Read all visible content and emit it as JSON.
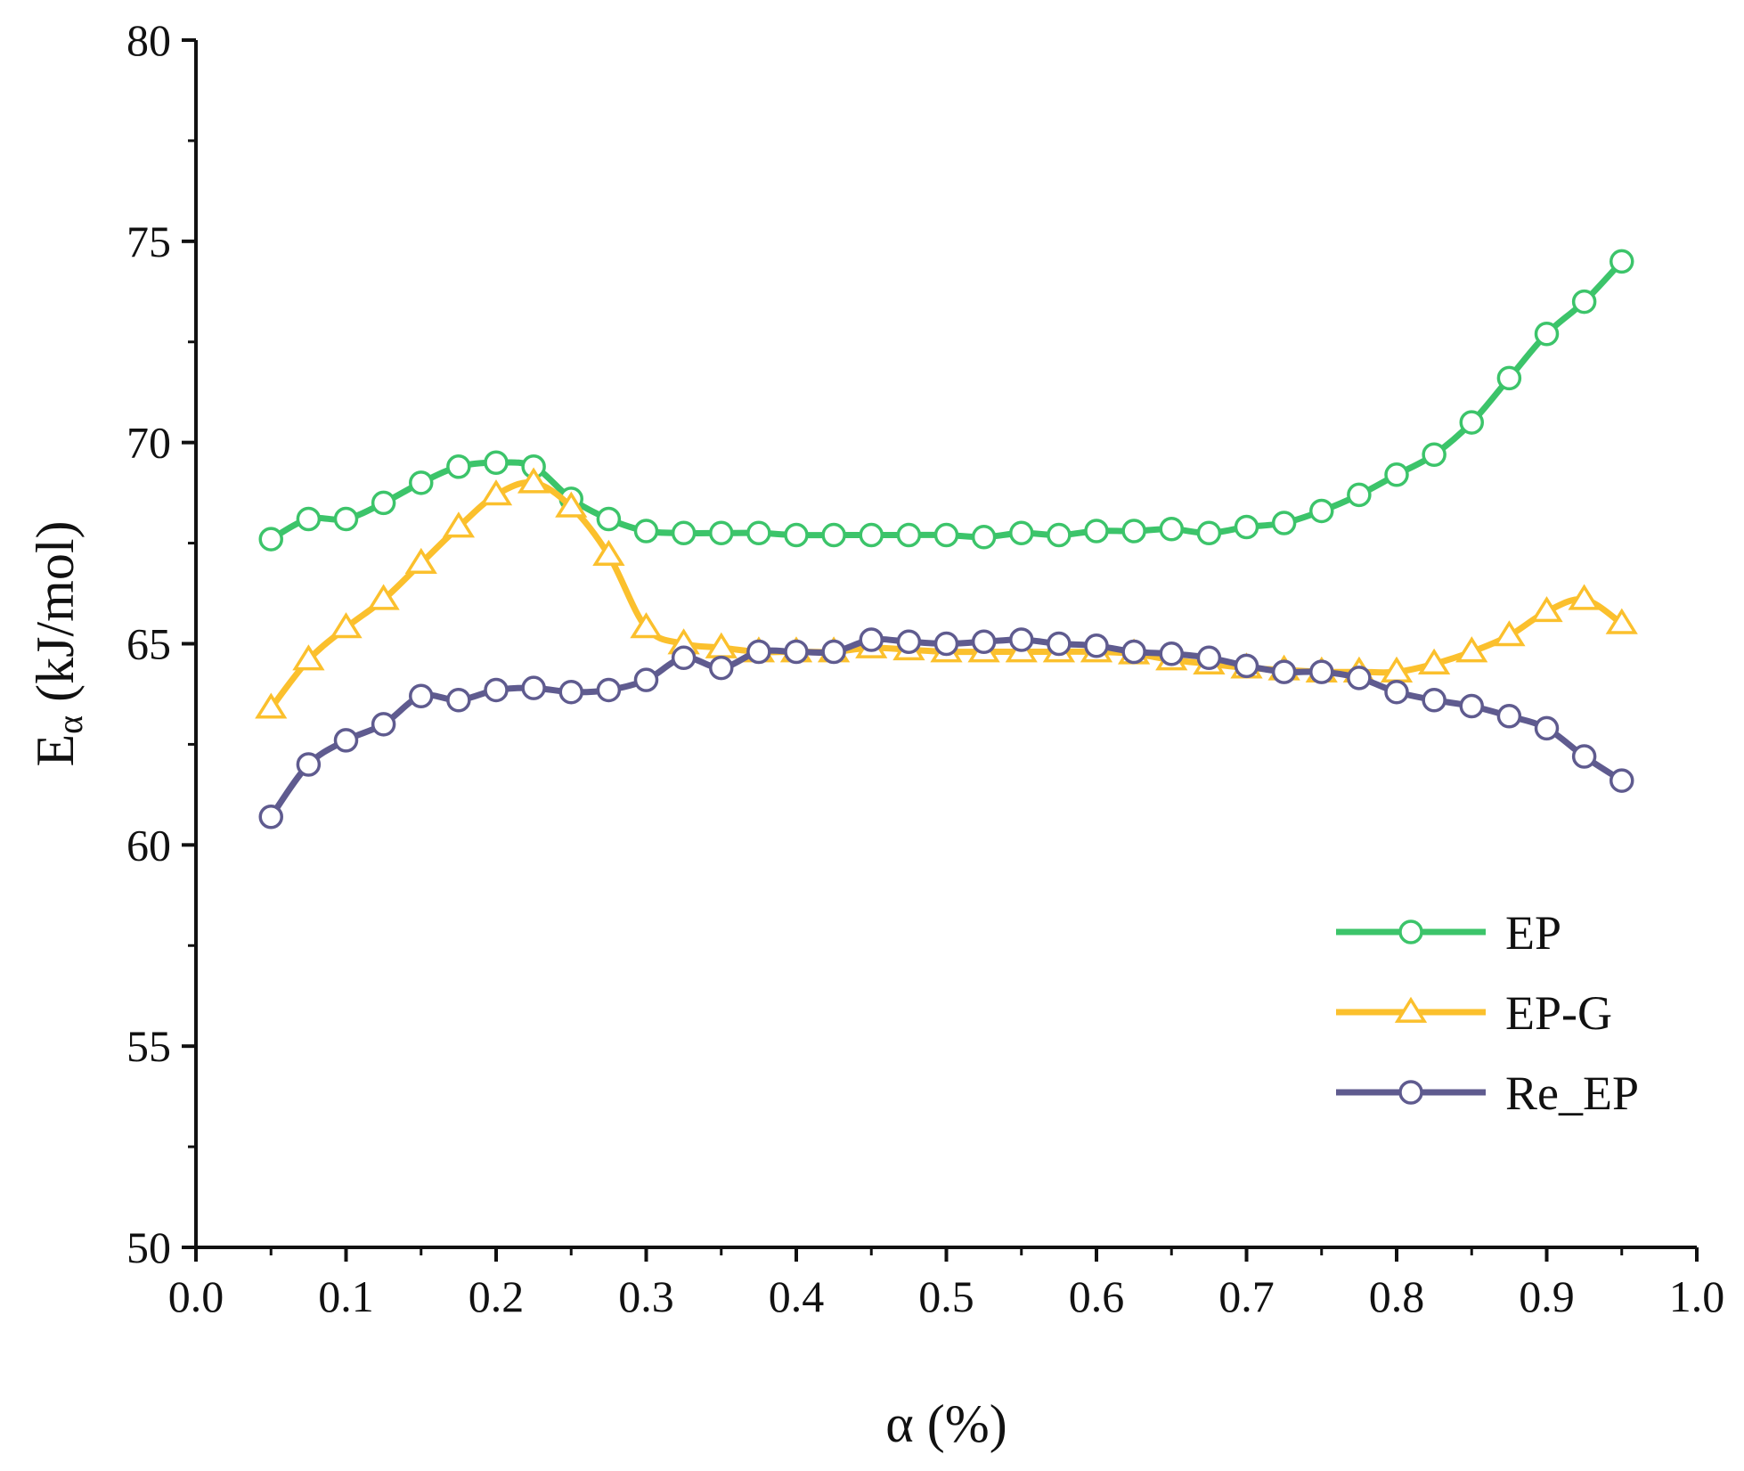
{
  "chart_data": {
    "type": "line",
    "title": "",
    "xlabel": "α (%)",
    "ylabel_main": "E",
    "ylabel_sub": "α",
    "ylabel_rest": " (kJ/mol)",
    "xlim": [
      0.0,
      1.0
    ],
    "ylim": [
      50,
      80
    ],
    "x_ticks": [
      0.0,
      0.1,
      0.2,
      0.3,
      0.4,
      0.5,
      0.6,
      0.7,
      0.8,
      0.9,
      1.0
    ],
    "x_tick_labels": [
      "0.0",
      "0.1",
      "0.2",
      "0.3",
      "0.4",
      "0.5",
      "0.6",
      "0.7",
      "0.8",
      "0.9",
      "1.0"
    ],
    "y_ticks": [
      50,
      55,
      60,
      65,
      70,
      75,
      80
    ],
    "y_tick_labels": [
      "50",
      "55",
      "60",
      "65",
      "70",
      "75",
      "80"
    ],
    "grid": false,
    "legend_position": "bottom-right",
    "x": [
      0.05,
      0.075,
      0.1,
      0.125,
      0.15,
      0.175,
      0.2,
      0.225,
      0.25,
      0.275,
      0.3,
      0.325,
      0.35,
      0.375,
      0.4,
      0.425,
      0.45,
      0.475,
      0.5,
      0.525,
      0.55,
      0.575,
      0.6,
      0.625,
      0.65,
      0.675,
      0.7,
      0.725,
      0.75,
      0.775,
      0.8,
      0.825,
      0.85,
      0.875,
      0.9,
      0.925,
      0.95
    ],
    "series": [
      {
        "name": "EP",
        "color": "#3cc46a",
        "marker": "circle",
        "values": [
          67.6,
          68.1,
          68.1,
          68.5,
          69.0,
          69.4,
          69.5,
          69.4,
          68.6,
          68.1,
          67.8,
          67.75,
          67.75,
          67.75,
          67.7,
          67.7,
          67.7,
          67.7,
          67.7,
          67.65,
          67.75,
          67.7,
          67.8,
          67.8,
          67.85,
          67.75,
          67.9,
          68.0,
          68.3,
          68.7,
          69.2,
          69.7,
          70.5,
          71.6,
          72.7,
          73.5,
          74.5
        ]
      },
      {
        "name": "EP-G",
        "color": "#fbc02d",
        "marker": "triangle",
        "values": [
          63.4,
          64.6,
          65.4,
          66.1,
          67.0,
          67.9,
          68.7,
          69.0,
          68.4,
          67.2,
          65.4,
          65.0,
          64.9,
          64.8,
          64.8,
          64.8,
          64.9,
          64.85,
          64.8,
          64.8,
          64.8,
          64.8,
          64.8,
          64.75,
          64.6,
          64.5,
          64.4,
          64.35,
          64.3,
          64.3,
          64.3,
          64.5,
          64.8,
          65.2,
          65.8,
          66.1,
          65.5
        ]
      },
      {
        "name": "Re_EP",
        "color": "#5f5b8f",
        "marker": "circle",
        "values": [
          60.7,
          62.0,
          62.6,
          63.0,
          63.7,
          63.6,
          63.85,
          63.9,
          63.8,
          63.85,
          64.1,
          64.65,
          64.4,
          64.8,
          64.8,
          64.8,
          65.1,
          65.05,
          65.0,
          65.05,
          65.1,
          65.0,
          64.95,
          64.8,
          64.75,
          64.65,
          64.45,
          64.3,
          64.3,
          64.15,
          63.8,
          63.6,
          63.45,
          63.2,
          62.9,
          62.2,
          61.6
        ]
      }
    ]
  }
}
